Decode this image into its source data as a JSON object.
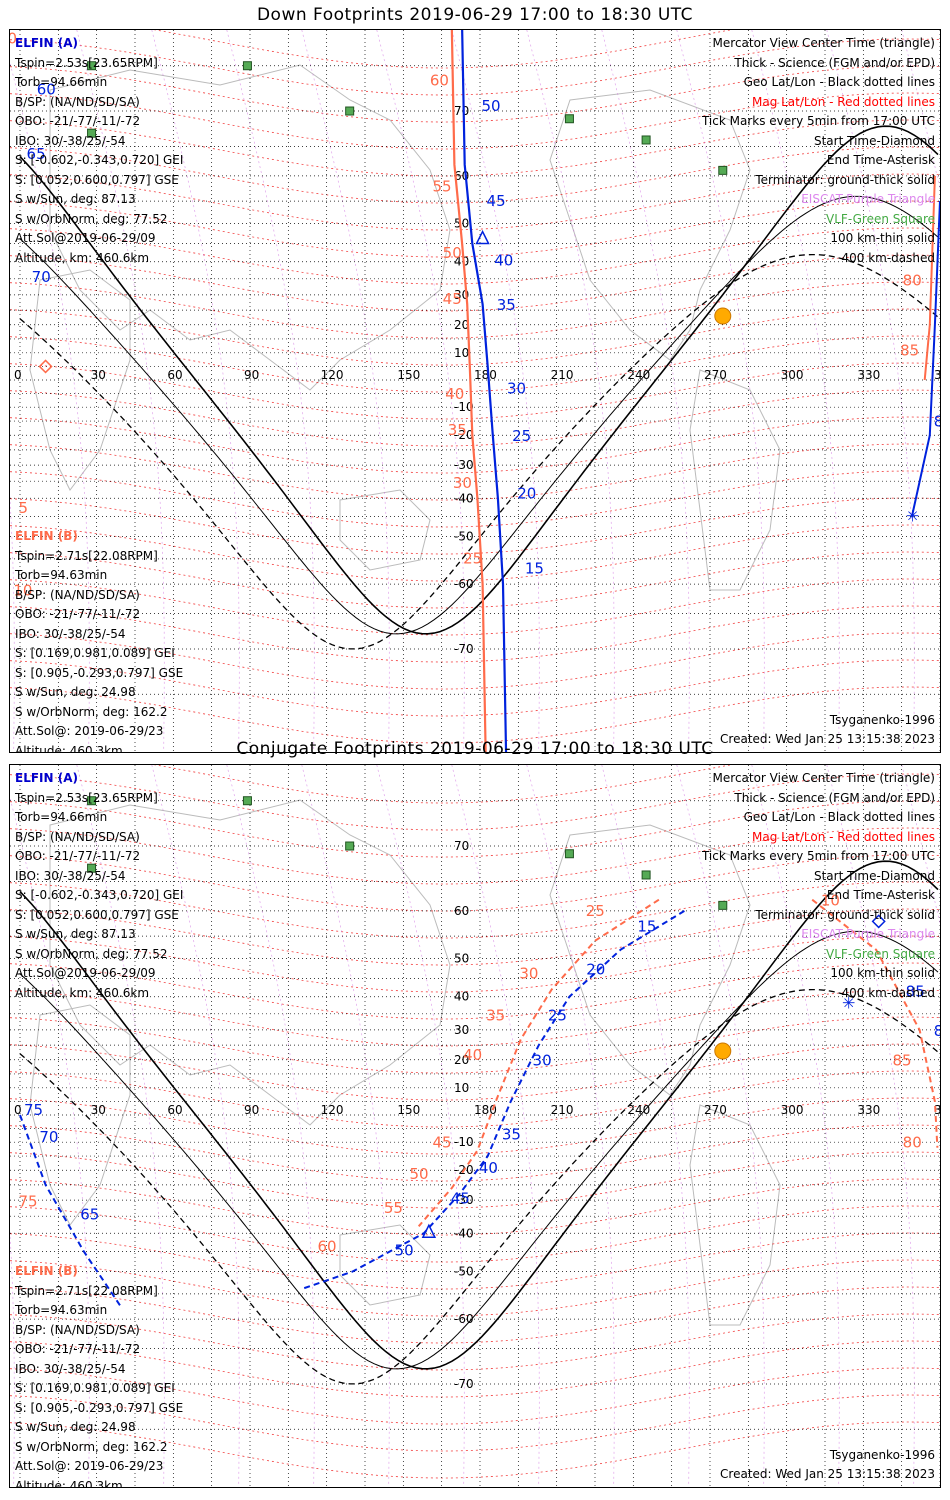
{
  "panels": [
    {
      "title": "Down Footprints 2019-06-29 17:00 to 18:30 UTC",
      "type": "down"
    },
    {
      "title": "Conjugate Footprints 2019-06-29 17:00 to 18:30 UTC",
      "type": "conjugate"
    }
  ],
  "info_a": {
    "name": "ELFIN (A)",
    "lines": [
      "Tspin=2.53s[23.65RPM]",
      "Torb=94.66min",
      "B/SP: (NA/ND/SD/SA)",
      "OBO: -21/-77/-11/-72",
      "IBO: 30/-38/25/-54",
      "S: [-0.602,-0.343,0.720] GEI",
      "S: [0.052,0.600,0.797] GSE",
      "S w/Sun, deg: 87.13",
      "S w/OrbNorm, deg: 77.52",
      "Att.Sol@2019-06-29/09",
      "Altitude, km: 460.6km"
    ]
  },
  "info_b": {
    "name": "ELFIN (B)",
    "lines": [
      "Tspin=2.71s[22.08RPM]",
      "Torb=94.63min",
      "B/SP: (NA/ND/SD/SA)",
      "OBO: -21/-77/-11/-72",
      "IBO: 30/-38/25/-54",
      "S: [0.169,0.981,0.089] GEI",
      "S: [0.905,-0.293,0.797] GSE",
      "S w/Sun, deg: 24.98",
      "S w/OrbNorm, deg: 162.2",
      "Att.Sol@: 2019-06-29/23"
    ],
    "altitude": "Altitude: 460.3km"
  },
  "legend": {
    "l1": "Mercator View Center Time (triangle)",
    "l2": "Thick - Science (FGM and/or EPD)",
    "l3": "Geo Lat/Lon - Black dotted lines",
    "l4": "Mag Lat/Lon - Red dotted lines",
    "l5": "Tick Marks every 5min from 17:00 UTC",
    "l6": "Start Time-Diamond",
    "l7": "End Time-Asterisk",
    "l8": "Terminator: ground-thick solid",
    "l9": "EISCAT-Purple Triangle",
    "l10": "VLF-Green Square",
    "l11": "100 km-thin solid",
    "l12": "400 km-dashed"
  },
  "footer": {
    "model": "Tsyganenko-1996",
    "created": "Created: Wed Jan 25 13:15:38 2023"
  },
  "axis": {
    "lon_ticks": [
      "0",
      "30",
      "60",
      "90",
      "120",
      "150",
      "180",
      "210",
      "240",
      "270",
      "300",
      "330",
      "360"
    ],
    "lat_ticks": [
      "70",
      "60",
      "50",
      "40",
      "30",
      "20",
      "10",
      "-10",
      "-20",
      "-30",
      "-40",
      "-50",
      "-60",
      "-70"
    ]
  },
  "colors": {
    "elfin_a": "#0022dd",
    "elfin_b": "#ff6b4a",
    "mag_grid": "#ee0000",
    "geo_grid": "#000000",
    "eiscat": "#dd88ee",
    "vlf": "#44aa44",
    "sun": "#ffaa00"
  },
  "chart_data": {
    "type": "map",
    "down": {
      "elfin_a_ticks": [
        {
          "label": "50",
          "lon": 179,
          "lat": 70
        },
        {
          "label": "45",
          "lon": 181,
          "lat": 54
        },
        {
          "label": "40",
          "lon": 184,
          "lat": 39
        },
        {
          "label": "35",
          "lon": 185,
          "lat": 25
        },
        {
          "label": "30",
          "lon": 189,
          "lat": -5
        },
        {
          "label": "25",
          "lon": 191,
          "lat": -22
        },
        {
          "label": "20",
          "lon": 193,
          "lat": -40
        },
        {
          "label": "15",
          "lon": 196,
          "lat": -58
        },
        {
          "label": "75",
          "lon": 363,
          "lat": 25
        },
        {
          "label": "80",
          "lon": 359,
          "lat": 0
        },
        {
          "label": "85",
          "lon": 356,
          "lat": -17
        },
        {
          "label": "65",
          "lon": 1,
          "lat": 63
        },
        {
          "label": "60",
          "lon": 5,
          "lat": 72
        },
        {
          "label": "70",
          "lon": 3,
          "lat": 34
        }
      ],
      "elfin_b_ticks": [
        {
          "label": "60",
          "lon": 169,
          "lat": 73
        },
        {
          "label": "55",
          "lon": 170,
          "lat": 57
        },
        {
          "label": "50",
          "lon": 174,
          "lat": 41
        },
        {
          "label": "45",
          "lon": 174,
          "lat": 27
        },
        {
          "label": "40",
          "lon": 175,
          "lat": -7
        },
        {
          "label": "35",
          "lon": 176,
          "lat": -20
        },
        {
          "label": "30",
          "lon": 178,
          "lat": -37
        },
        {
          "label": "25",
          "lon": 182,
          "lat": -56
        },
        {
          "label": "80",
          "lon": 354,
          "lat": 33
        },
        {
          "label": "85",
          "lon": 353,
          "lat": 9
        },
        {
          "label": "70",
          "lon": 0,
          "lat": 77
        },
        {
          "label": "5",
          "lon": 8,
          "lat": -44
        },
        {
          "label": "10",
          "lon": 6,
          "lat": -62
        }
      ],
      "vlf_sites": [
        [
          89,
          75
        ],
        [
          28,
          75
        ],
        [
          129,
          70
        ],
        [
          215,
          69
        ],
        [
          245,
          66
        ],
        [
          275,
          61
        ],
        [
          28,
          67
        ]
      ],
      "sun": {
        "lon": 275,
        "lat": 23
      }
    },
    "conjugate": {
      "elfin_a_ticks": [
        {
          "label": "15",
          "lon": 240,
          "lat": 56
        },
        {
          "label": "20",
          "lon": 220,
          "lat": 46
        },
        {
          "label": "25",
          "lon": 205,
          "lat": 33
        },
        {
          "label": "30",
          "lon": 199,
          "lat": 18
        },
        {
          "label": "35",
          "lon": 187,
          "lat": -9
        },
        {
          "label": "40",
          "lon": 178,
          "lat": -21
        },
        {
          "label": "45",
          "lon": 167,
          "lat": -31
        },
        {
          "label": "50",
          "lon": 145,
          "lat": -46
        },
        {
          "label": "80",
          "lon": 356,
          "lat": 28
        },
        {
          "label": "85",
          "lon": 345,
          "lat": 40
        },
        {
          "label": "70",
          "lon": 6,
          "lat": -10
        },
        {
          "label": "65",
          "lon": 22,
          "lat": -36
        },
        {
          "label": "75",
          "lon": 0,
          "lat": 0
        }
      ],
      "elfin_b_ticks": [
        {
          "label": "25",
          "lon": 230,
          "lat": 59
        },
        {
          "label": "30",
          "lon": 204,
          "lat": 45
        },
        {
          "label": "35",
          "lon": 191,
          "lat": 33
        },
        {
          "label": "40",
          "lon": 182,
          "lat": 20
        },
        {
          "label": "45",
          "lon": 170,
          "lat": -12
        },
        {
          "label": "50",
          "lon": 161,
          "lat": -23
        },
        {
          "label": "55",
          "lon": 151,
          "lat": -34
        },
        {
          "label": "60",
          "lon": 125,
          "lat": -45
        },
        {
          "label": "10",
          "lon": 322,
          "lat": 61
        },
        {
          "label": "85",
          "lon": 350,
          "lat": 18
        },
        {
          "label": "80",
          "lon": 354,
          "lat": -12
        },
        {
          "label": "75",
          "lon": 8,
          "lat": -32
        }
      ]
    }
  }
}
